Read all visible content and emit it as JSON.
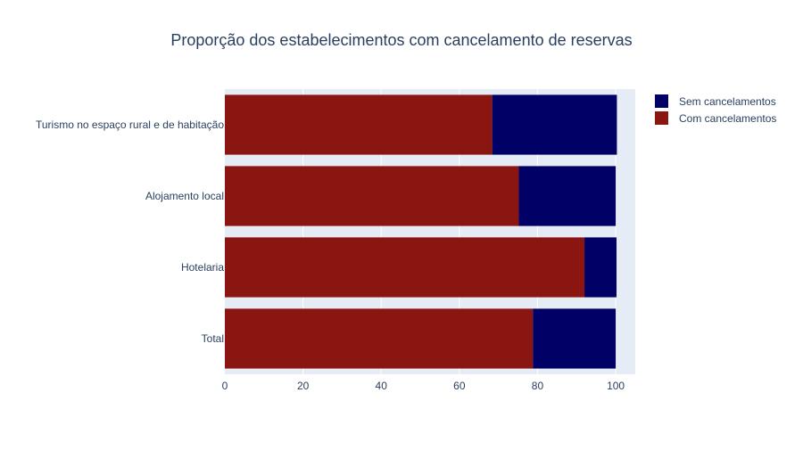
{
  "chart_data": {
    "type": "bar",
    "orientation": "horizontal",
    "stacked": true,
    "title": "Proporção dos estabelecimentos com cancelamento de reservas",
    "categories": [
      "Total",
      "Hotelaria",
      "Alojamento local",
      "Turismo no espaço rural e de habitação"
    ],
    "series": [
      {
        "name": "Com cancelamentos",
        "color": "#8b1510",
        "values": [
          78.8,
          92.0,
          75.2,
          68.4
        ]
      },
      {
        "name": "Sem cancelamentos",
        "color": "#000066",
        "values": [
          21.2,
          8.2,
          24.8,
          31.9
        ]
      }
    ],
    "xlim": [
      0,
      105
    ],
    "xticks": [
      0,
      20,
      40,
      60,
      80,
      100
    ],
    "grid": true,
    "legend_position": "top-right",
    "legend_order": [
      "Sem cancelamentos",
      "Com cancelamentos"
    ],
    "plot_background": "#e5ecf6"
  }
}
